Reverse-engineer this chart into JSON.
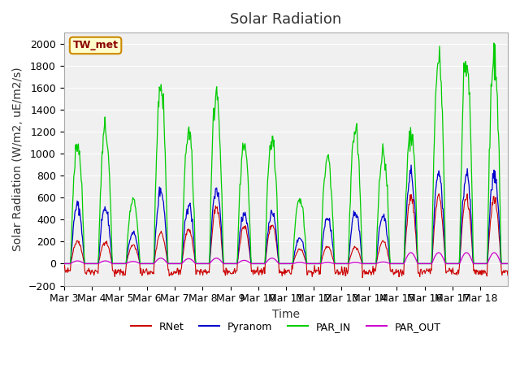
{
  "title": "Solar Radiation",
  "ylabel": "Solar Radiation (W/m2, uE/m2/s)",
  "xlabel": "Time",
  "station_label": "TW_met",
  "ylim": [
    -200,
    2100
  ],
  "yticks": [
    -200,
    0,
    200,
    400,
    600,
    800,
    1000,
    1200,
    1400,
    1600,
    1800,
    2000
  ],
  "date_labels": [
    "Mar 3",
    "Mar 4",
    "Mar 5",
    "Mar 6",
    "Mar 7",
    "Mar 8",
    "Mar 9",
    "Mar 10",
    "Mar 11",
    "Mar 12",
    "Mar 13",
    "Mar 14",
    "Mar 15",
    "Mar 16",
    "Mar 17",
    "Mar 18"
  ],
  "colors": {
    "RNet": "#cc0000",
    "Pyranom": "#0000cc",
    "PAR_IN": "#00cc00",
    "PAR_OUT": "#cc00cc"
  },
  "plot_bg": "#f0f0f0",
  "title_fontsize": 13,
  "label_fontsize": 10,
  "tick_fontsize": 9,
  "par_in_peaks": [
    1100,
    1220,
    570,
    1640,
    1200,
    1570,
    1050,
    1140,
    600,
    980,
    1230,
    1010,
    1200,
    1860,
    1870,
    1880
  ],
  "pyranom_peaks": [
    530,
    500,
    280,
    670,
    530,
    680,
    460,
    460,
    230,
    420,
    470,
    430,
    820,
    820,
    820,
    820
  ],
  "rnet_peaks": [
    200,
    200,
    170,
    280,
    310,
    510,
    340,
    350,
    130,
    150,
    150,
    200,
    600,
    600,
    600,
    600
  ],
  "par_out_peaks": [
    25,
    25,
    20,
    50,
    45,
    50,
    30,
    50,
    10,
    10,
    10,
    15,
    100,
    100,
    100,
    100
  ]
}
